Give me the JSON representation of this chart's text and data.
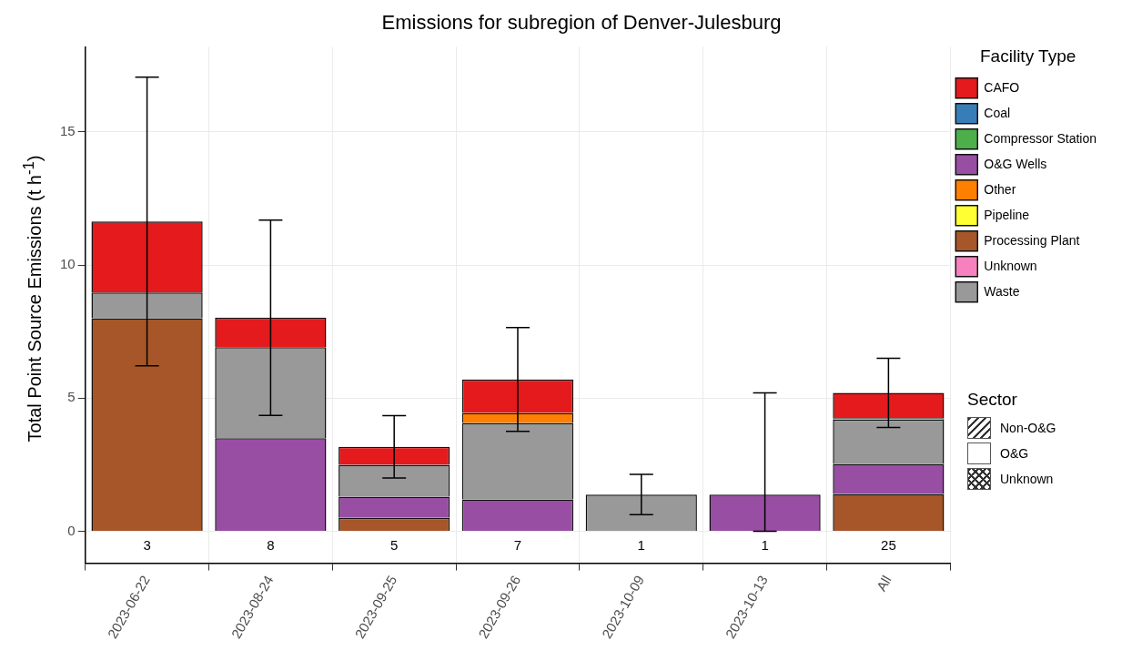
{
  "chart_data": {
    "type": "bar",
    "title": "Emissions for subregion of Denver-Julesburg",
    "ylabel": "Total Point Source Emissions (t h$^{-1}$)",
    "legend_title": "Facility Type",
    "categories": [
      "2023-06-22",
      "2023-08-24",
      "2023-09-25",
      "2023-09-26",
      "2023-10-09",
      "2023-10-13",
      "All"
    ],
    "stacked": true,
    "series": [
      {
        "name": "Processing Plant",
        "color": "#a65628",
        "values": [
          8.0,
          null,
          0.5,
          null,
          null,
          null,
          1.4
        ]
      },
      {
        "name": "O&G Wells",
        "color": "#984ea3",
        "values": [
          null,
          3.5,
          0.8,
          1.2,
          null,
          1.38,
          1.13
        ],
        "errors": [
          null,
          null,
          null,
          null,
          null,
          [
            0,
            5.2
          ],
          null
        ]
      },
      {
        "name": "Waste",
        "color": "#999999",
        "values": [
          0.97,
          3.42,
          1.2,
          2.87,
          1.38,
          null,
          1.67
        ],
        "errors": [
          null,
          null,
          null,
          null,
          0.76,
          null,
          null
        ]
      },
      {
        "name": "Other",
        "color": "#ff7f00",
        "values": [
          null,
          null,
          null,
          0.38,
          null,
          null,
          0.05
        ]
      },
      {
        "name": "CAFO",
        "color": "#e41a1c",
        "values": [
          2.67,
          1.1,
          0.67,
          1.25,
          null,
          null,
          0.95
        ],
        "errors": [
          5.42,
          3.67,
          1.17,
          1.95,
          null,
          null,
          1.3
        ]
      },
      {
        "name": "Coal",
        "color": "#377eb8",
        "values": [
          null,
          null,
          null,
          null,
          null,
          null,
          null
        ]
      },
      {
        "name": "Compressor Station",
        "color": "#4daf4a",
        "values": [
          null,
          null,
          null,
          null,
          null,
          null,
          null
        ]
      },
      {
        "name": "Pipeline",
        "color": "#ffff33",
        "values": [
          null,
          null,
          null,
          null,
          null,
          null,
          null
        ]
      },
      {
        "name": "Unknown",
        "color": "#f781bf",
        "values": [
          null,
          null,
          null,
          null,
          null,
          null,
          null
        ]
      }
    ],
    "ylim": [
      -1.2,
      18.2
    ],
    "yticks": [
      0,
      5,
      10,
      15
    ],
    "grid": true,
    "legend": "right",
    "annotations": [
      "Sector",
      "Non-O&G",
      "O&G",
      "Unknown",
      "3",
      "8",
      "5",
      "7",
      "1",
      "1",
      "25"
    ]
  }
}
